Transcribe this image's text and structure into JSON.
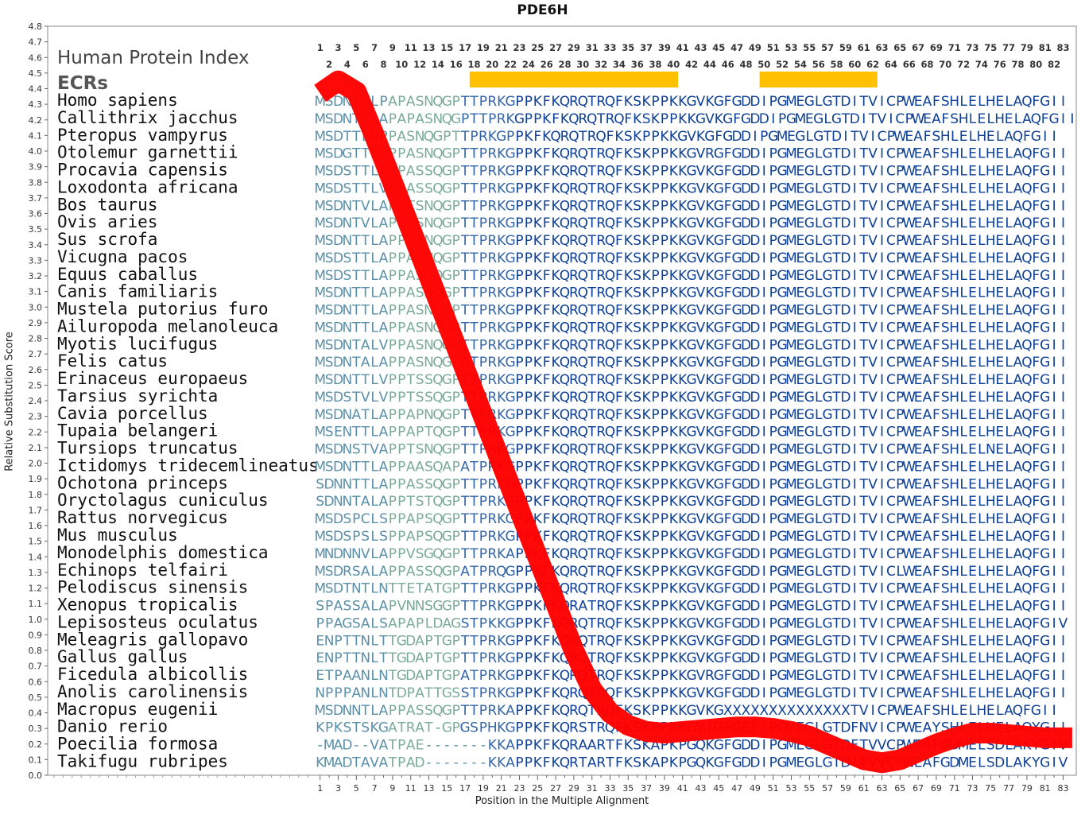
{
  "chart_data": {
    "type": "line",
    "title": "PDE6H",
    "xlabel": "Position in the Multiple Alignment",
    "ylabel": "Relative Substitution Score",
    "ylim": [
      0,
      4.8
    ],
    "xlim": [
      1,
      83
    ],
    "grid": false,
    "header_labels": {
      "index": "Human Protein Index",
      "ecrs": "ECRs"
    },
    "ecrs": [
      {
        "start": 18,
        "end": 40
      },
      {
        "start": 50,
        "end": 62
      }
    ],
    "line_color": "#ff0000",
    "ecr_color": "#ffc000",
    "series": [
      {
        "values": [
          4.37,
          4.45,
          4.38,
          4.1,
          3.8,
          3.5,
          3.2,
          2.9,
          2.6,
          2.3,
          2.0,
          1.7,
          1.4,
          1.1,
          0.8,
          0.55,
          0.4,
          0.32,
          0.28,
          0.27,
          0.28,
          0.29,
          0.3,
          0.31,
          0.31,
          0.3,
          0.28,
          0.25,
          0.2,
          0.15,
          0.1,
          0.08,
          0.1,
          0.15,
          0.2,
          0.24,
          0.27,
          0.27,
          0.26,
          0.25,
          0.24,
          0.24,
          0.24
        ]
      }
    ],
    "series_x": [
      1,
      3,
      5,
      7,
      9,
      11,
      13,
      15,
      17,
      19,
      21,
      23,
      25,
      27,
      29,
      31,
      33,
      35,
      37,
      39,
      41,
      43,
      45,
      47,
      49,
      51,
      53,
      55,
      57,
      59,
      61,
      63,
      65,
      67,
      69,
      71,
      73,
      75,
      77,
      79,
      81,
      83,
      84
    ],
    "species": [
      "Homo sapiens",
      "Callithrix jacchus",
      "Pteropus vampyrus",
      "Otolemur garnettii",
      "Procavia capensis",
      "Loxodonta africana",
      "Bos taurus",
      "Ovis aries",
      "Sus scrofa",
      "Vicugna pacos",
      "Equus caballus",
      "Canis familiaris",
      "Mustela putorius furo",
      "Ailuropoda melanoleuca",
      "Myotis lucifugus",
      "Felis catus",
      "Erinaceus europaeus",
      "Tarsius syrichta",
      "Cavia porcellus",
      "Tupaia belangeri",
      "Tursiops truncatus",
      "Ictidomys tridecemlineatus",
      "Ochotona princeps",
      "Oryctolagus cuniculus",
      "Rattus norvegicus",
      "Mus musculus",
      "Monodelphis domestica",
      "Echinops telfairi",
      "Pelodiscus sinensis",
      "Xenopus tropicalis",
      "Lepisosteus oculatus",
      "Meleagris gallopavo",
      "Gallus gallus",
      "Ficedula albicollis",
      "Anolis carolinensis",
      "Macropus eugenii",
      "Danio rerio",
      "Poecilia formosa",
      "Takifugu rubripes"
    ],
    "sequences": [
      "MSDNTTLPAPASNQGPTTPRKGPPKFKQRQTRQFKSKPPKKGVKGFGDDIPGMEGLGTDITVICPWEAFSHLELHELAQFGII",
      "MSDNTVLAPAPASNQGPTTPRKGPPKFKQRQTRQFKSKPPKKGVKGFGDDIPGMEGLGTDITVICPWEAFSHLELHELAQFGII",
      "MSDTTLVPPASNQGPTTPRKGPPKFKQRQTRQFKSKPPKKGVKGFGDDIPGMEGLGTDITVICPWEAFSHLELHELAQFGII",
      "MSDGTTLVPPASNQGPTTPRKGPPKFKQRQTRQFKSKPPKKGVRGFGDDIPGMEGLGTDITVICPWEAFSHLELHELAQFGII",
      "MSDSTTLAPPASSQGPTTPRKGPPKFKQRQTRQFKSKPPKKGVKGFGDDIPGMEGLGTDITVICPWEAFSHLELHELAQFGII",
      "MSDSTTLVPPASSQGPTTPRKGPPKFKQRQTRQFKSKPPKKGVKGFGDDIPGMEGLGTDITVICPWEAFSHLELHELAQFGII",
      "MSDNTVLAPPTSNQGPTTPRKGPPKFKQRQTRQFKSKPPKKGVKGFGDDIPGMEGLGTDITVICPWEAFSHLELHELAQFGII",
      "MSDNTVLAPPTSNQGPTTPRKGPPKFKQRQTRQFKSKPPKKGVKGFGDDIPGMEGLGTDITVICPWEAFSHLELHELAQFGII",
      "MSDNTTLAPPTSNQGPTTPRKGPPKFKQRQTRQFKSKPPKKGVKGFGDDIPGMEGLGTDITVICPWEAFSHLELHELAQFGII",
      "MSDSTTLAPPASNQGPTTPRKGPPKFKQRQTRQFKSKPPKKGVKGFGDDIPGMEGLGTDITVICPWEAFSHLELHELAQFGII",
      "MSDSTTLAPPASNQGPTTPRKGPPKFKQRQTRQFKSKPPKKGVKGFGDDIPGMEGLGTDITVICPWEAFSHLELHELAQFGII",
      "MSDNTTLAPPASNQGPTTPRKGPPKFKQRQTRQFKSKPPKKGVKGFGDDIPGMEGLGTDITVICPWEAFSHLELHELAQFGII",
      "MSDNTTLAPPASNQGPTTPRKGPPKFKQRQTRQFKSKPPKKGVKGFGDDIPGMEGLGTDITVICPWEAFSHLELHELAQFGII",
      "MSDNTTLAPPASNQGPTTPRKGPPKFKQRQTRQFKSKPPKKGVKGFGDDIPGMEGLGTDITVICPWEAFSHLELHELAQFGII",
      "MSDNTALVPPASNQGPTTPRKGPPKFKQRQTRQFKSKPPKKGVKGFGDDIPGMEGLGTDITVICPWEAFSHLELHELAQFGII",
      "MSDNTALAPPASNQGPATPRKGPPKFKQRQTRQFKSKPPKKGVKGFGDDIPGMEGLGTDITVICPWEAFSHLELHELAQFGII",
      "MSDNTTLVPPTSSQGPTTPRKGPPKFKQRQTRQFKSKPPKKGVKGFGDDIPGMEGLGTDITVICPWEAFSHLELHELAQFGII",
      "MSDSTVLVPPTSSQGPTTPRKGPPKFKQRQTRQFKSKPPKKGVKGFGDDIPGMEGLGTDITVICPWEAFSHLELHELAQFGII",
      "MSDNATLAPPAPNQGPTTPRKGPPKFKQRQTRQFKSKPPKKGVKGFGDDIPGMEGLGTDITVICPWEAFSHLELHELAQFGII",
      "MSENTTLAPPAPTQGPTTPRKGPPKFKQRQTRQFKSKPPKKGVKGFGDDIPGMEGLGTDITVICPWEAFSHLELHELAQFGII",
      "MSDNSTVAPPTSNQGPTTPRKGPPKFKQRQTRQFKSKPPKKGVKGFGDDIPGMEGLGTDITVICPWEAFSHLELNELAQFGII",
      "MSDNTTLAPPAASQAPATPRKGPPKFKQRQTRQFKSKPPKKGVKGFGDDIPGMEGLGTDITVICPWEAFSHLELHELAQFGII",
      "SDNNTTLAPPASSQGPTTPRKGPPKFKQRQTRQFKSKPPKKGVKGFGDDIPGMEGLGTDITVICPWEAFSHLELHELAQFGII",
      "SDNNTALAPPTSTQGPTTPRKGPPKFKQRQTRQFKSKPPKKGVKGFGDDIPGMEGLGTDITVICPWEAFSHLELHELAQFGII",
      "MSDSPCLSPPAPSQGPTTPRKGPPKFKQRQTRQFKSKPPKKGVKGFGDDIPGMEGLGTDITVICPWEAFSHLELHELAQFGII",
      "MSDSPSLSPPAPSQGPTTPRKGPPKFKQRQTRQFKSKPPKKGVKGFGDDIPGMEGLGTDITVICPWEAFSHLELHELAQFGII",
      "MNDNNVLAPPVSGQGPTTPRKAPPKFKQRQTRQFKSKPPKKGVKGFGDDIPGMEGLGTDITVICPWEAFSHLELHELAQFGII",
      "MSDRSALAPPASSQGPATPRQGPPKFKQRQTRQFKSKPPKKGVKGFGDDIPGMEGLGTDITVICLWEAFSHLELHELAQFGII",
      "MSDTNTLNTTETATGPTTPRKGPPKFKQRQTRQFKSKPPKKGVKGFGDDIPGMEGLGTDITVICPWEAFSHLELHELAQFGII",
      "SPASSALAPVNNSGGPTTPRKGPPKFKQRATRQFKSKPPKKGVKGFGDDIPGMEGLGTDITVICPWEAFSHLELHELAQFGII",
      "PPAGSALSAPAPLDAGSTPKKGPPKFKQRQTRQFKSKPPKKGVKGFGDDIPGMEGLGTDITVICPWEAFSHLELHELAQFGIV",
      "ENPTTNLTTGDAPTGPTTPRKGPPKFKQRQTRQFKSKPPKKGVKGFGDDIPGMEGLGTDITVICPWEAFSHLELHELAQFGII",
      "ENPTTNLTTGDAPTGPTTPRKGPPKFKQRQTRQFKSKPPKKGVKGFGDDIPGMEGLGTDITVICPWEAFSHLELHELAQFGII",
      "ETPAANLNTGDAPTGPATPRKGPPKFKQRQTRQFKSKPPKKGVRGFGDDIPGMEGLGTDITVICPWEAFSHLELHELAQFGII",
      "NPPPANLNTDPATTGSSTPRKGPPKFKQRQTRQFKSKPPKKGVKGFGDDIPGMEGLGTDITVICPWEAFSHLELHELAQFGII",
      "MSDNNTLAPPASSQGPTTPRKAPPKFKQRQTRQFKSKPPKKGVKGXXXXXXXXXXXXXXTVICPWEAFSHLELHELAQFGII",
      "KPKSTSKGATRAT-GPGSPHKGPPKFKQRSTRQFKSKPPKKGVIGFGEEIPGMEGLGTDFNVICPWEAYSHLELHELAQYGII",
      "-MAD--VATPAE-------KKAPPKFKQRAARTFKSKAPKPGQKGFGDDIPGMEGLGTDFTVVCPWEAFGDMELSDLAKYGIV",
      "KMADTAVATPAD-------KKAPPKFKQRTARTFKSKAPKPGQKGFGDDIPGMEGLGTDITVVCPWEAFGDMELSDLAKYGIV"
    ]
  }
}
